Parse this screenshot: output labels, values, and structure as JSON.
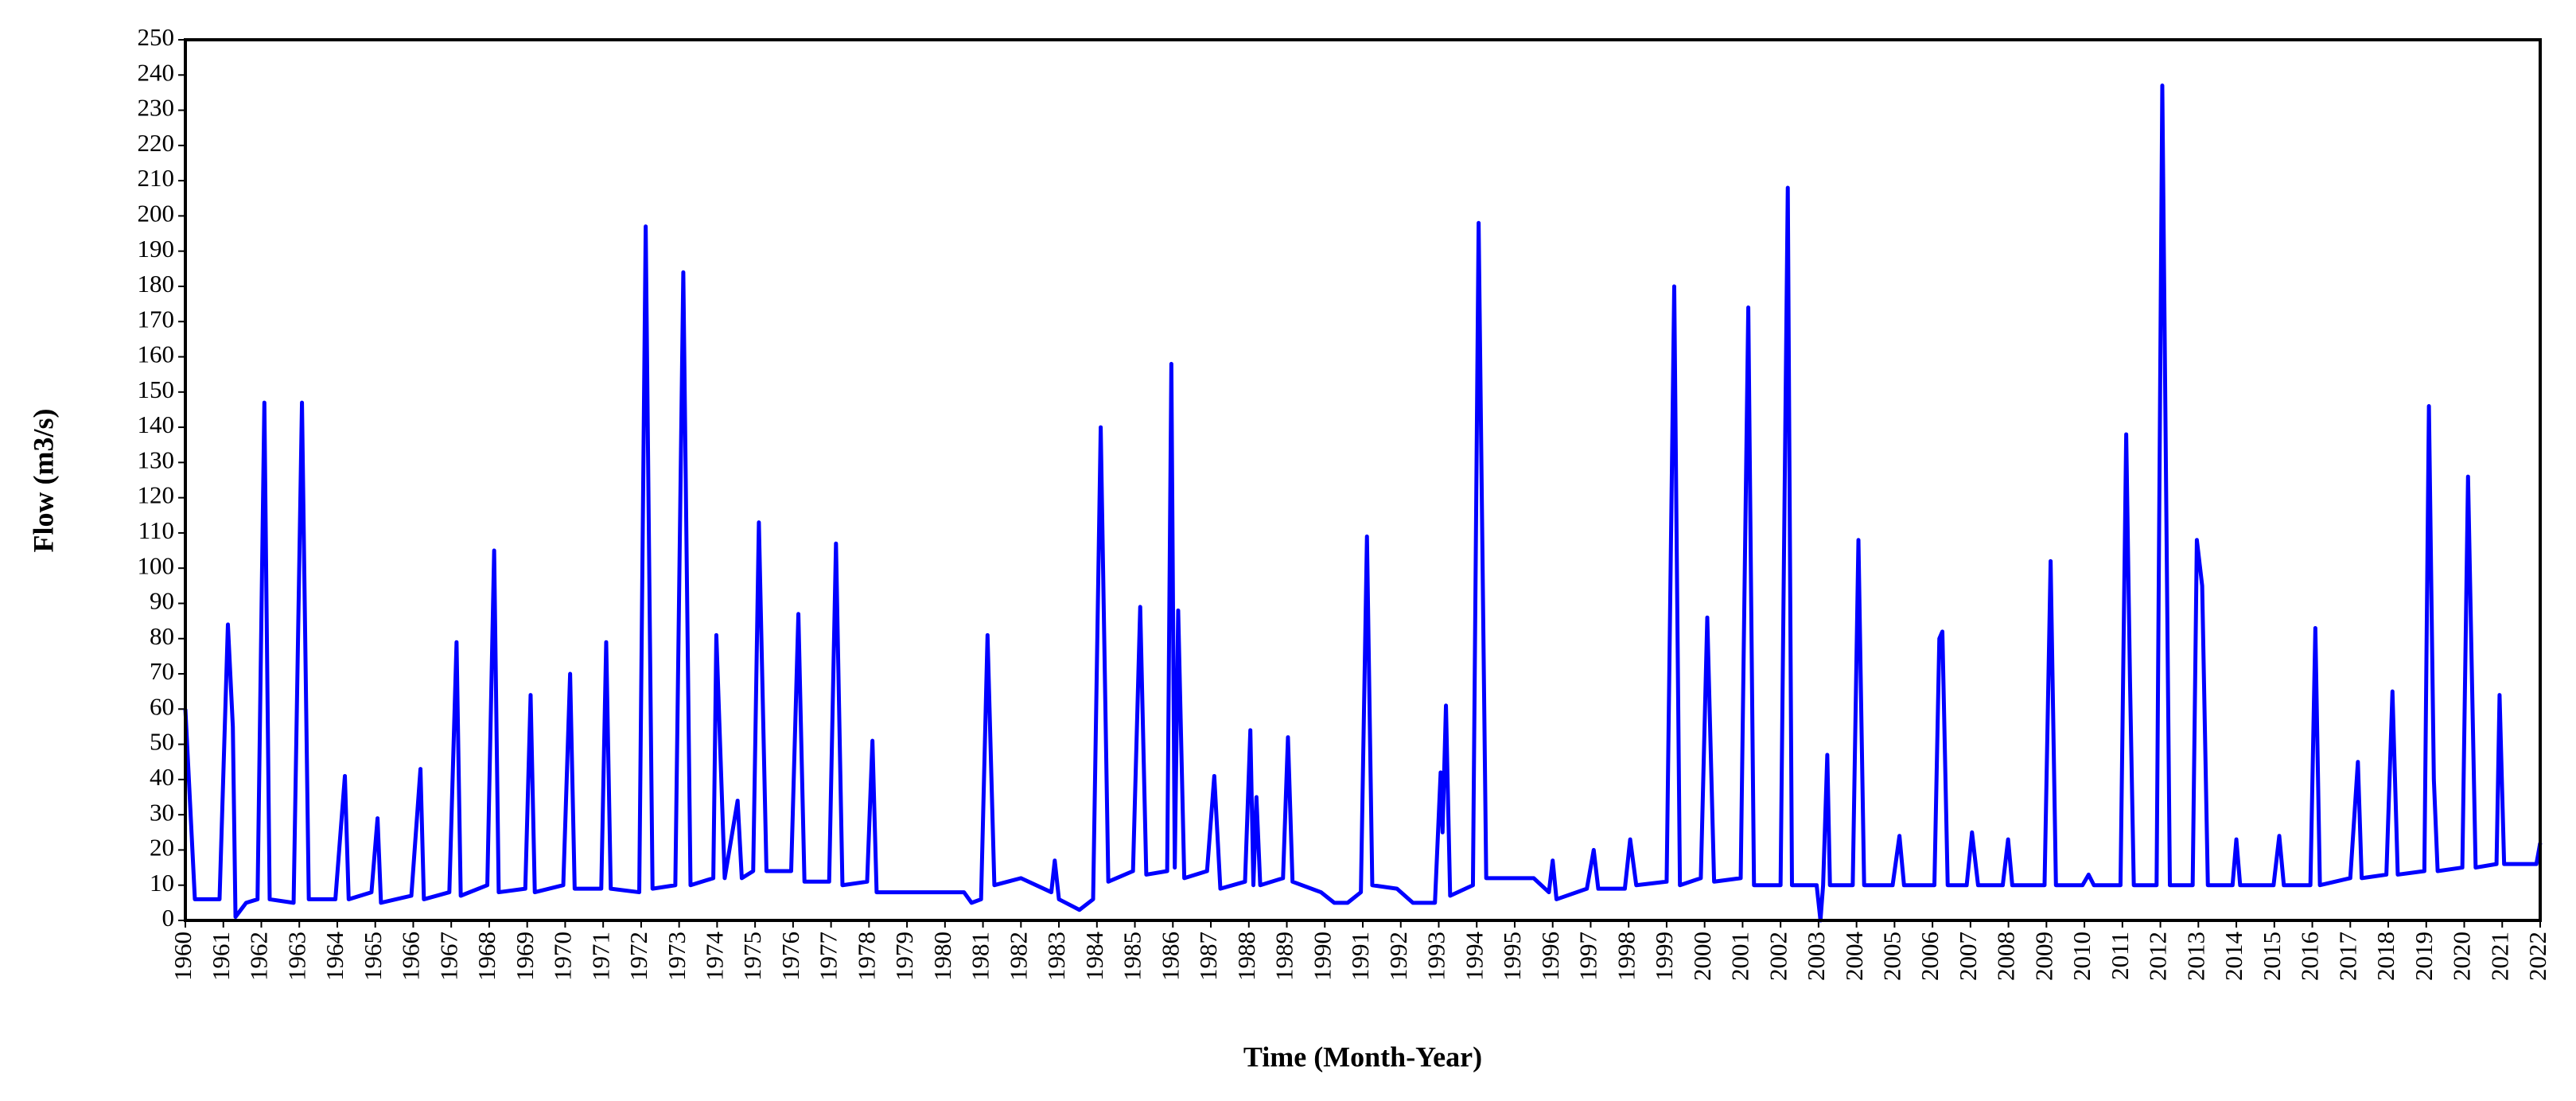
{
  "chart_data": {
    "type": "line",
    "x_label": "Time (Month-Year)",
    "y_label": "Flow (m3/s)",
    "xlim": [
      1960,
      2022
    ],
    "xticks": [
      1960,
      1961,
      1962,
      1963,
      1964,
      1965,
      1966,
      1967,
      1968,
      1969,
      1970,
      1971,
      1972,
      1973,
      1974,
      1975,
      1976,
      1977,
      1978,
      1979,
      1980,
      1981,
      1982,
      1983,
      1984,
      1985,
      1986,
      1987,
      1988,
      1989,
      1990,
      1991,
      1992,
      1993,
      1994,
      1995,
      1996,
      1997,
      1998,
      1999,
      2000,
      2001,
      2002,
      2003,
      2004,
      2005,
      2006,
      2007,
      2008,
      2009,
      2010,
      2011,
      2012,
      2013,
      2014,
      2015,
      2016,
      2017,
      2018,
      2019,
      2020,
      2021,
      2022
    ],
    "ylim": [
      0,
      250
    ],
    "yticks": [
      0,
      10,
      20,
      30,
      40,
      50,
      60,
      70,
      80,
      90,
      100,
      110,
      120,
      130,
      140,
      150,
      160,
      170,
      180,
      190,
      200,
      210,
      220,
      230,
      240,
      250
    ],
    "x": [
      1960.0,
      1960.25,
      1960.9,
      1961.12,
      1961.25,
      1961.32,
      1961.6,
      1961.9,
      1962.08,
      1962.22,
      1962.85,
      1963.07,
      1963.25,
      1963.95,
      1964.05,
      1964.2,
      1964.3,
      1964.9,
      1965.06,
      1965.15,
      1965.95,
      1966.19,
      1966.28,
      1966.95,
      1967.14,
      1967.25,
      1967.95,
      1968.13,
      1968.25,
      1968.95,
      1969.09,
      1969.2,
      1969.95,
      1970.13,
      1970.25,
      1970.95,
      1971.08,
      1971.2,
      1971.95,
      1972.12,
      1972.3,
      1972.9,
      1973.11,
      1973.3,
      1973.9,
      1973.98,
      1974.2,
      1974.54,
      1974.65,
      1974.95,
      1975.1,
      1975.3,
      1975.95,
      1976.14,
      1976.3,
      1976.95,
      1977.13,
      1977.3,
      1977.95,
      1978.09,
      1978.2,
      1980.5,
      1980.7,
      1980.95,
      1981.12,
      1981.3,
      1982.0,
      1982.8,
      1982.89,
      1983.0,
      1983.54,
      1983.9,
      1984.1,
      1984.3,
      1984.95,
      1985.14,
      1985.3,
      1985.85,
      1985.96,
      1986.05,
      1986.14,
      1986.3,
      1986.9,
      1987.09,
      1987.25,
      1987.9,
      1988.04,
      1988.12,
      1988.2,
      1988.3,
      1988.9,
      1989.03,
      1989.15,
      1989.9,
      1990.25,
      1990.6,
      1990.95,
      1991.11,
      1991.25,
      1991.9,
      1992.32,
      1992.9,
      1993.05,
      1993.1,
      1993.19,
      1993.3,
      1993.9,
      1994.05,
      1994.25,
      1995.5,
      1995.9,
      1996.0,
      1996.1,
      1996.9,
      1997.08,
      1997.2,
      1997.9,
      1998.04,
      1998.2,
      1999.0,
      1999.2,
      1999.35,
      1999.9,
      2000.07,
      2000.25,
      2000.95,
      2001.15,
      2001.3,
      2002.0,
      2002.19,
      2002.3,
      2002.95,
      2003.05,
      2003.12,
      2003.23,
      2003.3,
      2003.9,
      2004.05,
      2004.2,
      2004.95,
      2005.13,
      2005.25,
      2006.05,
      2006.18,
      2006.26,
      2006.4,
      2006.9,
      2007.04,
      2007.2,
      2007.85,
      2007.99,
      2008.1,
      2008.95,
      2009.11,
      2009.25,
      2009.95,
      2010.11,
      2010.25,
      2010.95,
      2011.1,
      2011.2,
      2011.3,
      2011.9,
      2012.05,
      2012.25,
      2012.85,
      2012.96,
      2013.1,
      2013.25,
      2013.9,
      2014.0,
      2014.1,
      2014.98,
      2015.13,
      2015.25,
      2015.95,
      2016.08,
      2016.2,
      2017.0,
      2017.2,
      2017.3,
      2017.95,
      2018.11,
      2018.25,
      2018.95,
      2019.07,
      2019.2,
      2019.3,
      2019.95,
      2020.1,
      2020.3,
      2020.85,
      2020.93,
      2021.05,
      2021.9,
      2022.0
    ],
    "series": [
      {
        "color": "#0000ff",
        "values": [
          60,
          6,
          6,
          84,
          55,
          1,
          5,
          6,
          147,
          6,
          5,
          147,
          6,
          6,
          20,
          41,
          6,
          8,
          29,
          5,
          7,
          43,
          6,
          8,
          79,
          7,
          10,
          105,
          8,
          9,
          64,
          8,
          10,
          70,
          9,
          9,
          79,
          9,
          8,
          197,
          9,
          10,
          184,
          10,
          12,
          81,
          12,
          34,
          12,
          14,
          113,
          14,
          14,
          87,
          11,
          11,
          107,
          10,
          11,
          51,
          8,
          8,
          5,
          6,
          81,
          10,
          12,
          8,
          17,
          6,
          3,
          6,
          140,
          11,
          14,
          89,
          13,
          14,
          158,
          15,
          88,
          12,
          14,
          41,
          9,
          11,
          54,
          10,
          35,
          10,
          12,
          52,
          11,
          8,
          5,
          5,
          8,
          109,
          10,
          9,
          5,
          5,
          42,
          25,
          61,
          7,
          10,
          198,
          12,
          12,
          8,
          17,
          6,
          9,
          20,
          9,
          9,
          23,
          10,
          11,
          180,
          10,
          12,
          86,
          11,
          12,
          174,
          10,
          10,
          208,
          10,
          10,
          0,
          10,
          47,
          10,
          10,
          108,
          10,
          10,
          24,
          10,
          10,
          80,
          82,
          10,
          10,
          25,
          10,
          10,
          23,
          10,
          10,
          102,
          10,
          10,
          13,
          10,
          10,
          138,
          68,
          10,
          10,
          237,
          10,
          10,
          108,
          95,
          10,
          10,
          23,
          10,
          10,
          24,
          10,
          10,
          83,
          10,
          12,
          45,
          12,
          13,
          65,
          13,
          14,
          146,
          40,
          14,
          15,
          126,
          15,
          16,
          64,
          16,
          16,
          22
        ]
      }
    ]
  }
}
